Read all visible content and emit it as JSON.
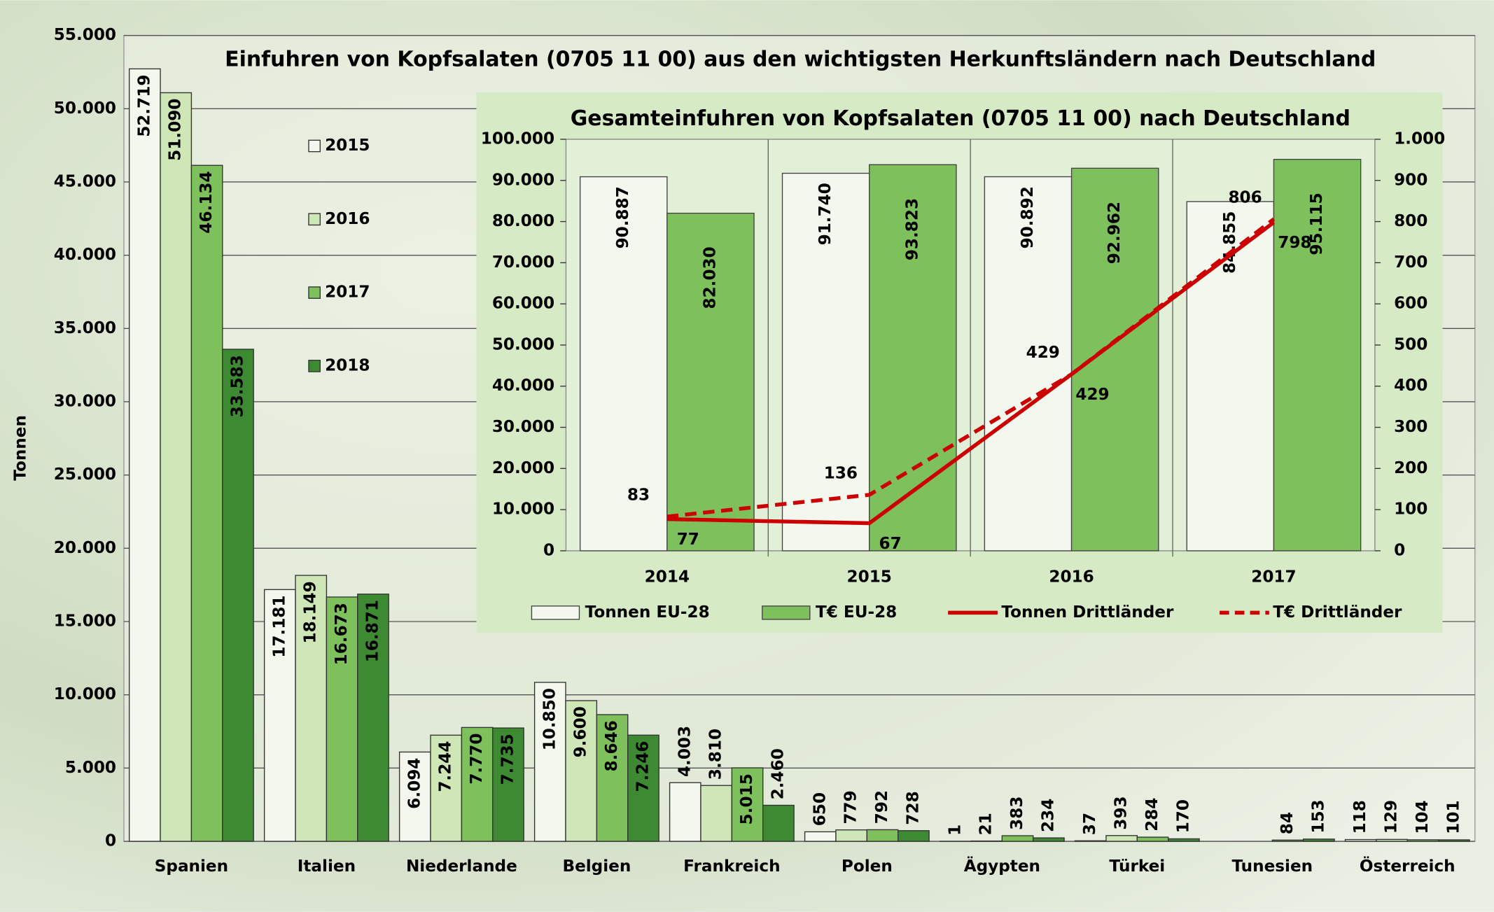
{
  "chart_data": [
    {
      "type": "bar",
      "title": "Einfuhren von Kopfsalaten (0705 11 00) aus den wichtigsten Herkunftsländern nach Deutschland",
      "y_label": "Tonnen",
      "categories": [
        "Spanien",
        "Italien",
        "Niederlande",
        "Belgien",
        "Frankreich",
        "Polen",
        "Ägypten",
        "Türkei",
        "Tunesien",
        "Österreich"
      ],
      "series": [
        {
          "name": "2015",
          "color": "#f3f7ee",
          "values": [
            52719,
            17181,
            6094,
            10850,
            4003,
            650,
            1,
            37,
            null,
            118
          ],
          "value_labels": [
            "52.719",
            "17.181",
            "6.094",
            "10.850",
            "4.003",
            "650",
            "1",
            "37",
            null,
            "118"
          ]
        },
        {
          "name": "2016",
          "color": "#cfe7b6",
          "values": [
            51090,
            18149,
            7244,
            9600,
            3810,
            779,
            21,
            393,
            null,
            129
          ],
          "value_labels": [
            "51.090",
            "18.149",
            "7.244",
            "9.600",
            "3.810",
            "779",
            "21",
            "393",
            null,
            "129"
          ]
        },
        {
          "name": "2017",
          "color": "#7dc05c",
          "values": [
            46134,
            16673,
            7770,
            8646,
            5015,
            792,
            383,
            284,
            84,
            104
          ],
          "value_labels": [
            "46.134",
            "16.673",
            "7.770",
            "8.646",
            "5.015",
            "792",
            "383",
            "284",
            "84",
            "104"
          ]
        },
        {
          "name": "2018",
          "color": "#3e8a32",
          "values": [
            33583,
            16871,
            7735,
            7246,
            2460,
            728,
            234,
            170,
            153,
            101
          ],
          "value_labels": [
            "33.583",
            "16.871",
            "7.735",
            "7.246",
            "2.460",
            "728",
            "234",
            "170",
            "153",
            "101"
          ]
        }
      ],
      "ylim": [
        0,
        55000
      ],
      "yticks": [
        0,
        {
          "value": 5000,
          "label": "5.000"
        },
        {
          "value": 10000,
          "label": "10.000"
        },
        {
          "value": 15000,
          "label": "15.000"
        },
        {
          "value": 20000,
          "label": "20.000"
        },
        {
          "value": 25000,
          "label": "25.000"
        },
        {
          "value": 30000,
          "label": "30.000"
        },
        {
          "value": 35000,
          "label": "35.000"
        },
        {
          "value": 40000,
          "label": "40.000"
        },
        {
          "value": 45000,
          "label": "45.000"
        },
        {
          "value": 50000,
          "label": "50.000"
        },
        {
          "value": 55000,
          "label": "55.000"
        }
      ],
      "grid": true,
      "legend": "left"
    },
    {
      "type": "bar-line",
      "title": "Gesamteinfuhren von Kopfsalaten (0705 11 00) nach Deutschland",
      "categories": [
        "2014",
        "2015",
        "2016",
        "2017"
      ],
      "series": [
        {
          "name": "Tonnen EU-28",
          "type": "bar",
          "color": "#f3f7ee",
          "values": [
            90887,
            91740,
            90892,
            84855
          ],
          "value_labels": [
            "90.887",
            "91.740",
            "90.892",
            "84.855"
          ]
        },
        {
          "name": "T€ EU-28",
          "type": "bar",
          "color": "#7dc05c",
          "values": [
            82030,
            93823,
            92962,
            95115
          ],
          "value_labels": [
            "82.030",
            "93.823",
            "92.962",
            "95.115"
          ]
        },
        {
          "name": "Tonnen Drittländer",
          "type": "line",
          "axis": "y2",
          "color": "#cc0000",
          "dashed": false,
          "values": [
            77,
            67,
            429,
            798
          ]
        },
        {
          "name": "T€ Drittländer",
          "type": "line",
          "axis": "y2",
          "color": "#cc0000",
          "dashed": true,
          "values": [
            83,
            136,
            429,
            806
          ]
        }
      ],
      "ylim": [
        0,
        100000
      ],
      "yticks": [
        0,
        {
          "value": 10000,
          "label": "10.000"
        },
        {
          "value": 20000,
          "label": "20.000"
        },
        {
          "value": 30000,
          "label": "30.000"
        },
        {
          "value": 40000,
          "label": "40.000"
        },
        {
          "value": 50000,
          "label": "50.000"
        },
        {
          "value": 60000,
          "label": "60.000"
        },
        {
          "value": 70000,
          "label": "70.000"
        },
        {
          "value": 80000,
          "label": "80.000"
        },
        {
          "value": 90000,
          "label": "90.000"
        },
        {
          "value": 100000,
          "label": "100.000"
        }
      ],
      "y2lim": [
        0,
        1000
      ],
      "y2ticks": [
        0,
        100,
        200,
        300,
        400,
        500,
        600,
        700,
        800,
        900,
        {
          "value": 1000,
          "label": "1.000"
        }
      ],
      "legend": "bottom"
    }
  ]
}
